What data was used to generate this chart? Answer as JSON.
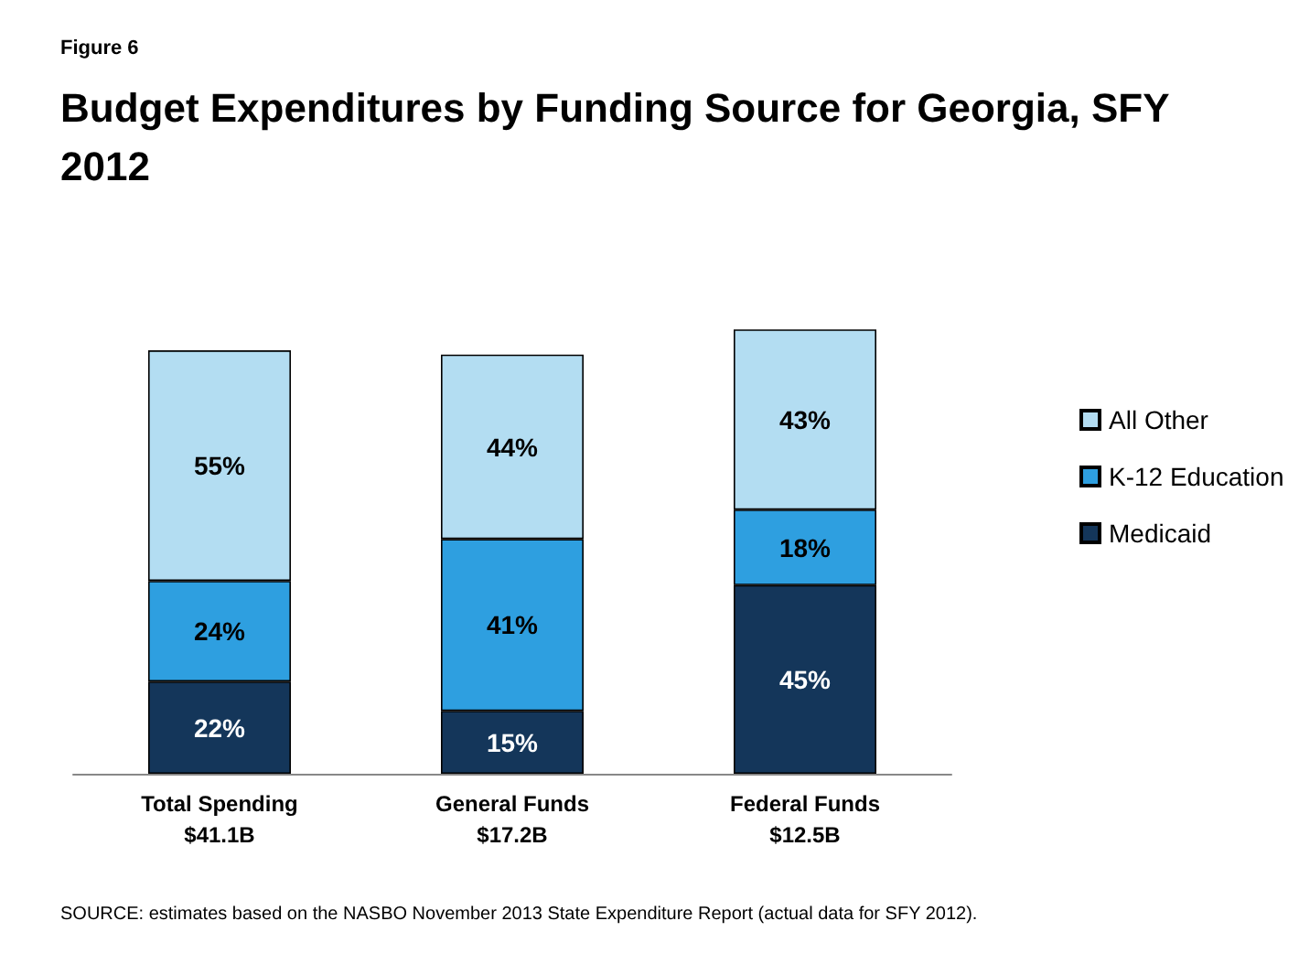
{
  "chart_data": {
    "type": "bar",
    "subtitle": "Figure 6",
    "title": "Budget Expenditures by Funding Source for Georgia, SFY 2012",
    "categories": [
      "Total Spending\n$41.1B",
      "General Funds\n$17.2B",
      "Federal Funds\n$12.5B"
    ],
    "stacked": true,
    "legend": "right",
    "tick_labels": "x",
    "series": [
      {
        "name": "Medicaid",
        "color": "#14365a",
        "values": [
          22,
          15,
          45
        ],
        "value_labels": [
          "22%",
          "15%",
          "45%"
        ]
      },
      {
        "name": "K-12 Education",
        "color": "#2e9fe0",
        "values": [
          24,
          41,
          18
        ],
        "value_labels": [
          "24%",
          "41%",
          "18%"
        ]
      },
      {
        "name": "All Other",
        "color": "#b3ddf2",
        "values": [
          55,
          44,
          43
        ],
        "value_labels": [
          "55%",
          "44%",
          "43%"
        ]
      }
    ],
    "annotations": [
      "SOURCE: estimates based on the NASBO November 2013 State Expenditure Report (actual data for SFY 2012)."
    ]
  }
}
